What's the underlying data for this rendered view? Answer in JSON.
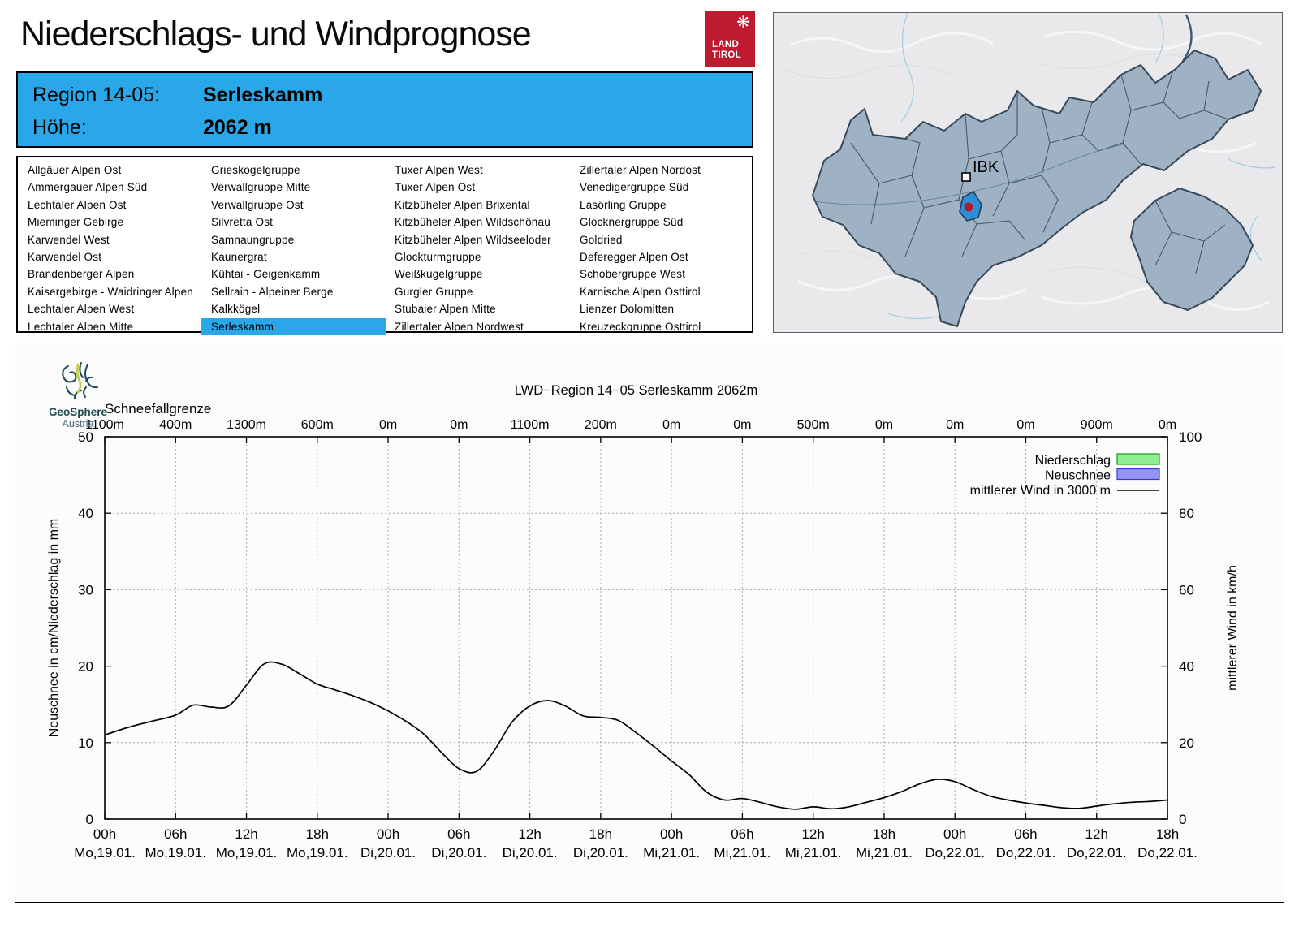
{
  "header": {
    "title": "Niederschlags- und Windprognose"
  },
  "tirol_logo": {
    "line1": "LAND",
    "line2": "TIROL",
    "bg": "#c01a30",
    "emblem_icon": "snowflake-eagle"
  },
  "info_box": {
    "bg": "#29a7e8",
    "region_label": "Region 14-05:",
    "region_value": "Serleskamm",
    "altitude_label": "Höhe:",
    "altitude_value": "2062 m"
  },
  "region_list": {
    "selected": "Serleskamm",
    "highlight_color": "#29a7e8",
    "columns": [
      [
        "Allgäuer Alpen Ost",
        "Ammergauer Alpen Süd",
        "Lechtaler Alpen Ost",
        "Mieminger Gebirge",
        "Karwendel West",
        "Karwendel Ost",
        "Brandenberger Alpen",
        "Kaisergebirge - Waidringer Alpen",
        "Lechtaler Alpen West",
        "Lechtaler Alpen Mitte"
      ],
      [
        "Grieskogelgruppe",
        "Verwallgruppe Mitte",
        "Verwallgruppe Ost",
        "Silvretta Ost",
        "Samnaungruppe",
        "Kaunergrat",
        "Kühtai - Geigenkamm",
        "Sellrain - Alpeiner Berge",
        "Kalkkögel",
        "Serleskamm"
      ],
      [
        "Tuxer Alpen West",
        "Tuxer Alpen Ost",
        "Kitzbüheler Alpen Brixental",
        "Kitzbüheler Alpen Wildschönau",
        "Kitzbüheler Alpen Wildseeloder",
        "Glockturmgruppe",
        "Weißkugelgruppe",
        "Gurgler Gruppe",
        "Stubaier Alpen Mitte",
        "Zillertaler Alpen Nordwest"
      ],
      [
        "Zillertaler Alpen Nordost",
        "Venedigergruppe Süd",
        "Lasörling Gruppe",
        "Glocknergruppe Süd",
        "Goldried",
        "Deferegger Alpen Ost",
        "Schobergruppe West",
        "Karnische Alpen Osttirol",
        "Lienzer Dolomitten",
        "Kreuzeckgruppe Osttirol"
      ]
    ]
  },
  "map": {
    "city_label": "IBK",
    "highlight_color": "#2e8fd8",
    "dot_color": "#b21b2c",
    "region_fill": "#9fb2c3",
    "region_stroke": "#37495a"
  },
  "geosphere": {
    "name": "GeoSphere",
    "country": "Austria"
  },
  "chart_data": {
    "type": "line",
    "title": "LWD−Region 14−05 Serleskamm 2062m",
    "top_axis": {
      "label": "Schneefallgrenze",
      "values": [
        "1100m",
        "400m",
        "1300m",
        "600m",
        "0m",
        "0m",
        "1100m",
        "200m",
        "0m",
        "0m",
        "500m",
        "0m",
        "0m",
        "0m",
        "900m",
        "0m"
      ]
    },
    "x_hours": [
      "00h",
      "06h",
      "12h",
      "18h",
      "00h",
      "06h",
      "12h",
      "18h",
      "00h",
      "06h",
      "12h",
      "18h",
      "00h",
      "06h",
      "12h",
      "18h"
    ],
    "x_dates": [
      "Mo,19.01.",
      "Mo,19.01.",
      "Mo,19.01.",
      "Mo,19.01.",
      "Di,20.01.",
      "Di,20.01.",
      "Di,20.01.",
      "Di,20.01.",
      "Mi,21.01.",
      "Mi,21.01.",
      "Mi,21.01.",
      "Mi,21.01.",
      "Do,22.01.",
      "Do,22.01.",
      "Do,22.01.",
      "Do,22.01."
    ],
    "ylabel_left": "Neuschnee in cm/Niederschlag in mm",
    "ylabel_right": "mittlerer Wind in km/h",
    "ylim_left": [
      0,
      50
    ],
    "ylim_right": [
      0,
      100
    ],
    "yticks_left": [
      0,
      10,
      20,
      30,
      40,
      50
    ],
    "yticks_right": [
      0,
      20,
      40,
      60,
      80,
      100
    ],
    "grid": true,
    "legend_position": "top-right",
    "legend": [
      {
        "label": "Niederschlag",
        "type": "box",
        "fill": "#90ee90",
        "stroke": "#0aa00a"
      },
      {
        "label": "Neuschnee",
        "type": "box",
        "fill": "#9494f2",
        "stroke": "#3a3ad0"
      },
      {
        "label": "mittlerer Wind in 3000 m",
        "type": "line",
        "stroke": "#000000"
      }
    ],
    "series": [
      {
        "name": "mittlerer Wind in 3000 m",
        "unit": "km/h",
        "axis": "right",
        "x_unit": "hours since Mo 19.01. 00h",
        "points": [
          [
            0,
            22.0
          ],
          [
            2,
            24.0
          ],
          [
            4,
            25.6
          ],
          [
            6,
            27.2
          ],
          [
            7.5,
            29.8
          ],
          [
            9,
            29.3
          ],
          [
            10.5,
            29.6
          ],
          [
            12,
            35.0
          ],
          [
            13.5,
            40.6
          ],
          [
            15,
            40.5
          ],
          [
            16.5,
            38.0
          ],
          [
            18,
            35.3
          ],
          [
            19.5,
            33.8
          ],
          [
            21,
            32.3
          ],
          [
            22.5,
            30.5
          ],
          [
            24,
            28.3
          ],
          [
            25.5,
            25.6
          ],
          [
            27,
            22.3
          ],
          [
            28.5,
            17.5
          ],
          [
            30,
            13.2
          ],
          [
            31.5,
            12.5
          ],
          [
            33,
            18.0
          ],
          [
            34.5,
            25.4
          ],
          [
            36,
            29.6
          ],
          [
            37.5,
            31.0
          ],
          [
            39,
            29.6
          ],
          [
            40.5,
            27.0
          ],
          [
            42,
            26.6
          ],
          [
            43.5,
            25.8
          ],
          [
            45,
            22.6
          ],
          [
            46.5,
            19.0
          ],
          [
            48,
            15.2
          ],
          [
            49.5,
            11.6
          ],
          [
            51,
            7.0
          ],
          [
            52.5,
            5.0
          ],
          [
            54,
            5.4
          ],
          [
            55.5,
            4.4
          ],
          [
            57,
            3.2
          ],
          [
            58.5,
            2.6
          ],
          [
            60,
            3.2
          ],
          [
            61.5,
            2.7
          ],
          [
            63,
            3.2
          ],
          [
            64.5,
            4.4
          ],
          [
            66,
            5.6
          ],
          [
            67.5,
            7.2
          ],
          [
            69,
            9.2
          ],
          [
            70.5,
            10.4
          ],
          [
            72,
            9.8
          ],
          [
            73.5,
            7.8
          ],
          [
            75,
            6.0
          ],
          [
            76.5,
            5.0
          ],
          [
            78,
            4.2
          ],
          [
            79.5,
            3.6
          ],
          [
            81,
            3.0
          ],
          [
            82.5,
            2.8
          ],
          [
            84,
            3.4
          ],
          [
            85.5,
            4.0
          ],
          [
            87,
            4.4
          ],
          [
            88.5,
            4.6
          ],
          [
            90,
            5.0
          ]
        ]
      }
    ]
  }
}
